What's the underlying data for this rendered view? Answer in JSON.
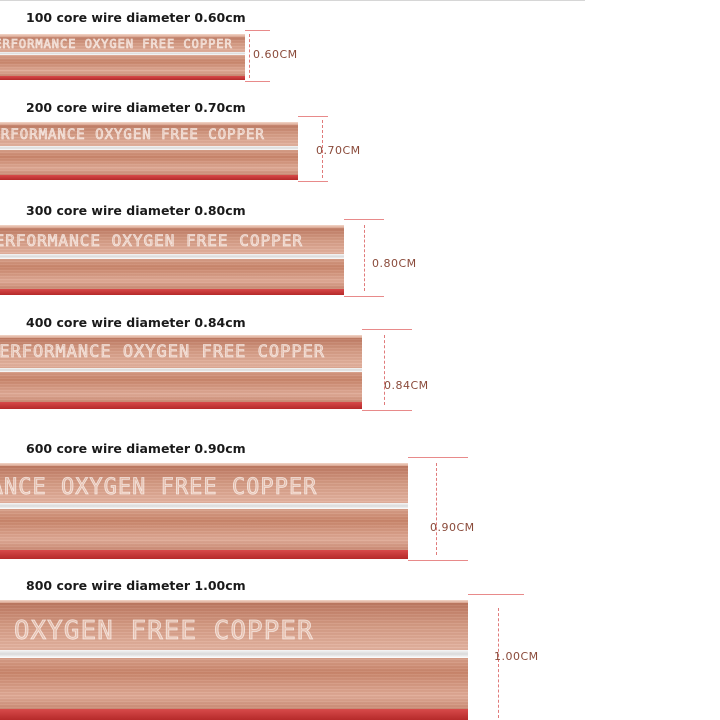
{
  "rows": [
    {
      "caption": "100 core wire diameter 0.60cm",
      "measure": "0.60CM",
      "lettering": "PERFORMANCE OXYGEN FREE COPPER"
    },
    {
      "caption": "200 core wire diameter 0.70cm",
      "measure": "0.70CM",
      "lettering": "PERFORMANCE OXYGEN FREE COPPER"
    },
    {
      "caption": "300 core wire diameter 0.80cm",
      "measure": "0.80CM",
      "lettering": "PERFORMANCE OXYGEN FREE COPPER"
    },
    {
      "caption": "400 core wire diameter 0.84cm",
      "measure": "0.84CM",
      "lettering": "PERFORMANCE OXYGEN FREE COPPER"
    },
    {
      "caption": "600 core wire diameter 0.90cm",
      "measure": "0.90CM",
      "lettering": "PERFORMANCE OXYGEN FREE COPPER"
    },
    {
      "caption": "800 core wire diameter 1.00cm",
      "measure": "1.00CM",
      "lettering": "PERFORMANCE OXYGEN FREE COPPER"
    }
  ],
  "colors": {
    "copper": "#d39a83",
    "red_insulation": "#c83a3a",
    "bracket": "#e07a7a"
  }
}
